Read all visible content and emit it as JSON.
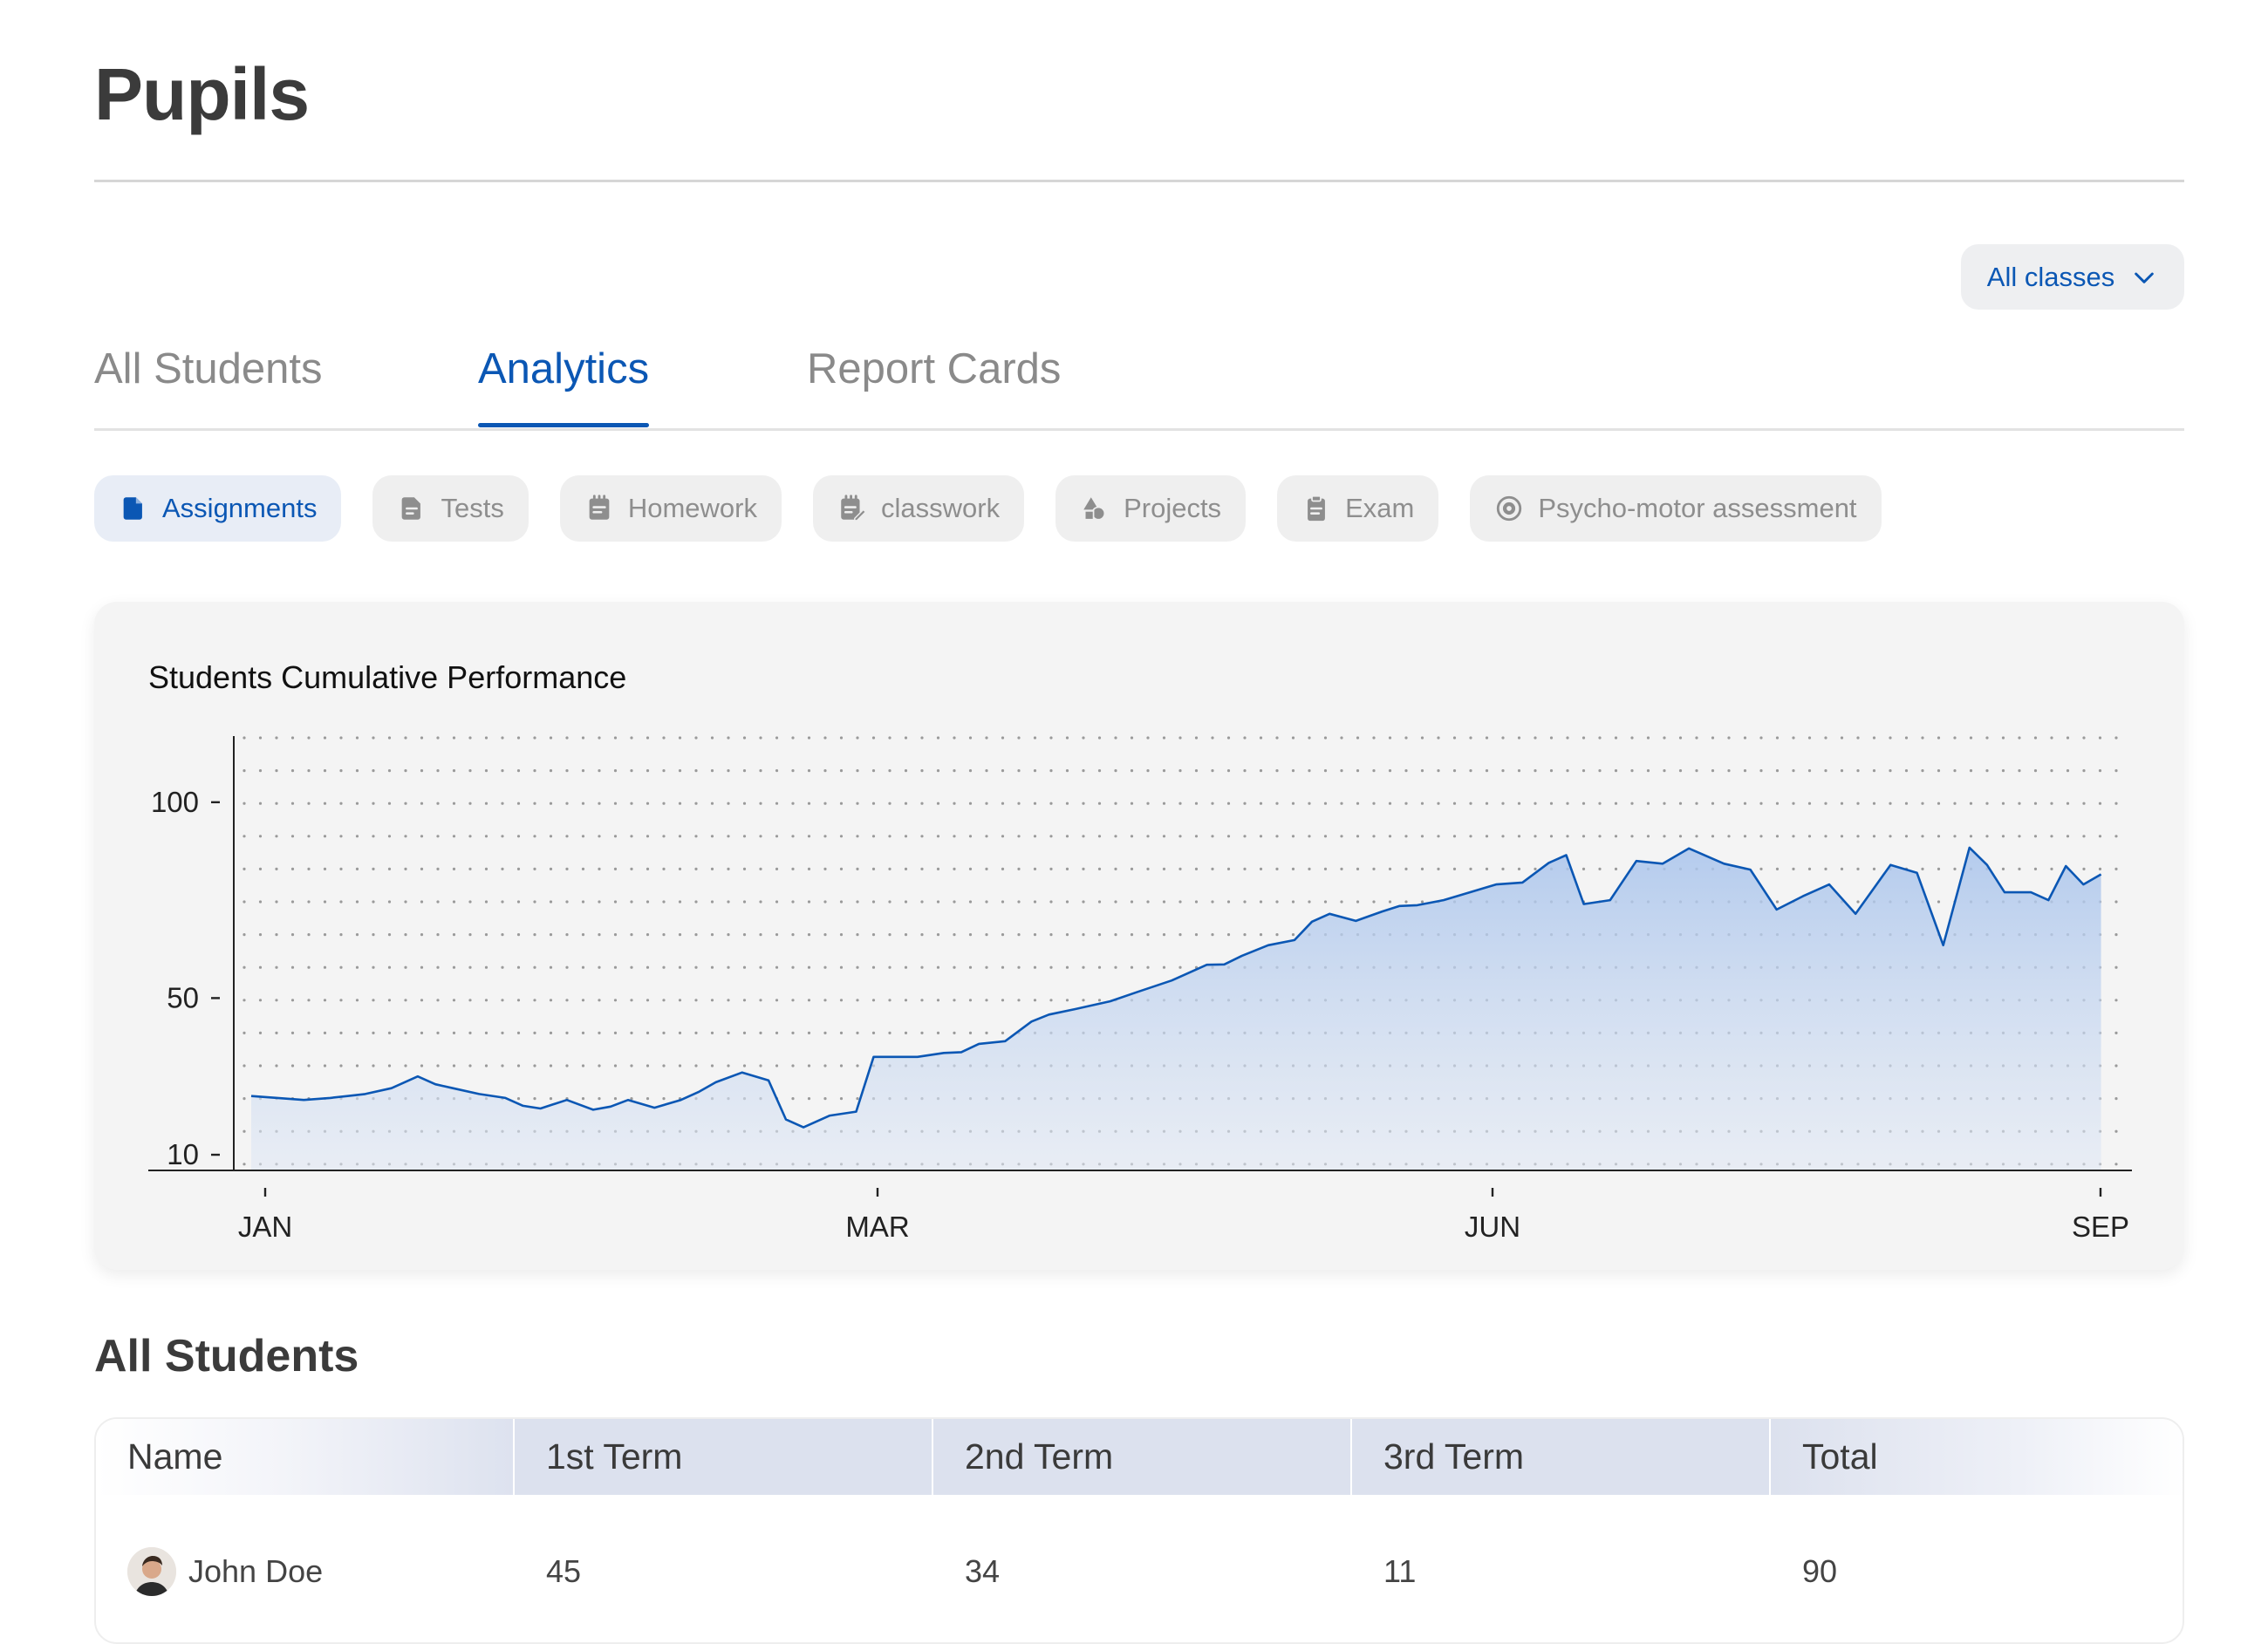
{
  "page": {
    "title": "Pupils"
  },
  "class_filter": {
    "label": "All classes"
  },
  "tabs": [
    {
      "label": "All Students"
    },
    {
      "label": "Analytics"
    },
    {
      "label": "Report Cards"
    }
  ],
  "filters": [
    {
      "label": "Assignments",
      "icon": "document-icon"
    },
    {
      "label": "Tests",
      "icon": "test-paper-icon"
    },
    {
      "label": "Homework",
      "icon": "notepad-icon"
    },
    {
      "label": "classwork",
      "icon": "edit-notepad-icon"
    },
    {
      "label": "Projects",
      "icon": "shapes-icon"
    },
    {
      "label": "Exam",
      "icon": "clipboard-icon"
    },
    {
      "label": "Psycho-motor assessment",
      "icon": "target-icon"
    }
  ],
  "chart_data": {
    "type": "area",
    "title": "Students Cumulative Performance",
    "xlabel": "",
    "ylabel": "",
    "x_ticks": [
      "JAN",
      "MAR",
      "JUN",
      "SEP"
    ],
    "y_ticks": [
      100,
      50,
      10
    ],
    "ylim": [
      6,
      105
    ],
    "grid": "dotted",
    "color": "#0b57b4",
    "x": [
      0.0,
      0.3,
      0.6,
      0.9,
      1.1,
      1.3,
      1.6,
      1.9,
      2.1,
      2.3,
      2.6,
      2.9,
      3.1,
      3.3,
      3.6,
      3.9,
      4.1,
      4.3,
      4.6,
      4.9,
      5.1,
      5.3,
      5.6,
      5.9,
      6.1,
      6.3,
      6.6,
      6.9,
      7.1,
      7.3,
      7.6,
      7.9,
      8.1,
      8.3,
      8.6,
      8.9,
      9.1,
      9.4,
      9.8,
      10.1,
      10.5,
      10.9,
      11.1,
      11.3,
      11.6,
      11.9,
      12.1,
      12.3,
      12.6,
      12.9,
      13.1,
      13.3,
      13.6,
      13.9,
      14.2,
      14.5,
      14.8,
      15.0,
      15.2,
      15.5,
      15.8,
      16.1,
      16.4,
      16.8,
      17.1,
      17.4,
      17.7,
      18.0,
      18.3,
      18.7,
      19.0,
      19.3,
      19.6,
      19.8,
      20.0,
      20.3,
      20.5,
      20.7,
      20.9,
      21.1
    ],
    "y": [
      25,
      24.5,
      24,
      24.5,
      25,
      25.5,
      27,
      30,
      28,
      27,
      25.5,
      24.5,
      22.5,
      21.8,
      24,
      21.5,
      22.3,
      24,
      22,
      24,
      26,
      28.5,
      31,
      29,
      19,
      17,
      20,
      21,
      35,
      35,
      35,
      36,
      36.2,
      38.3,
      39,
      44,
      45.8,
      47.2,
      49.2,
      51.5,
      54.5,
      58.5,
      58.6,
      60.8,
      63.5,
      64.8,
      69.5,
      71.5,
      69.7,
      72.1,
      73.5,
      73.7,
      75,
      77,
      79,
      79.5,
      84.5,
      86.5,
      74,
      75,
      85,
      84.3,
      88.2,
      84.3,
      82.8,
      72.6,
      76,
      79,
      71.5,
      84,
      82,
      63.5,
      88.4,
      84,
      77,
      77,
      75,
      83.7,
      79,
      81.6
    ]
  },
  "students_section": {
    "title": "All Students"
  },
  "table": {
    "columns": [
      "Name",
      "1st Term",
      "2nd Term",
      "3rd Term",
      "Total"
    ],
    "rows": [
      {
        "name": "John Doe",
        "term1": "45",
        "term2": "34",
        "term3": "11",
        "total": "90"
      }
    ]
  }
}
